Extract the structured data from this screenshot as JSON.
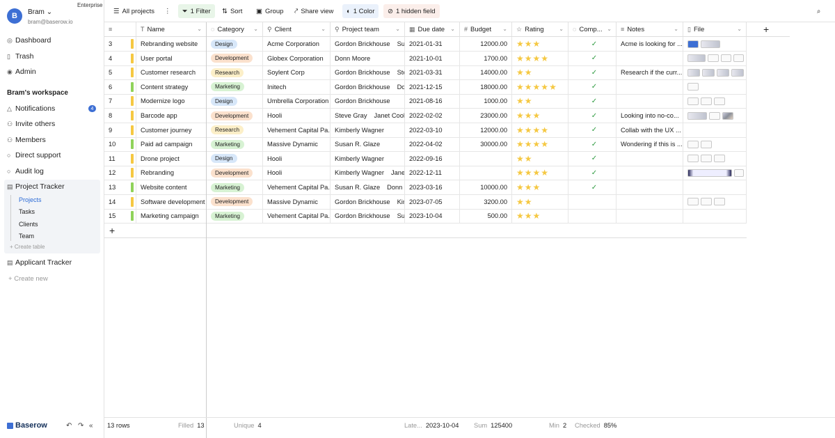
{
  "user": {
    "initial": "B",
    "name": "Bram",
    "email": "bram@baserow.io",
    "plan": "Enterprise"
  },
  "sidebar": {
    "items": [
      {
        "label": "Dashboard",
        "icon": "dashboard-icon"
      },
      {
        "label": "Trash",
        "icon": "trash-icon"
      },
      {
        "label": "Admin",
        "icon": "admin-icon"
      }
    ],
    "workspace_title": "Bram's workspace",
    "workspace_items": [
      {
        "label": "Notifications",
        "icon": "bell-icon"
      },
      {
        "label": "Invite others",
        "icon": "invite-icon"
      },
      {
        "label": "Members",
        "icon": "members-icon"
      },
      {
        "label": "Direct support",
        "icon": "support-icon"
      },
      {
        "label": "Audit log",
        "icon": "audit-icon"
      }
    ],
    "notifications_count": "4",
    "database": "Project Tracker",
    "tables": [
      "Projects",
      "Tasks",
      "Clients",
      "Team"
    ],
    "create_table": "+ Create table",
    "database2": "Applicant Tracker",
    "create_new": "Create new",
    "logo": "Baserow"
  },
  "toolbar": {
    "view": "All projects",
    "filter": "1 Filter",
    "sort": "Sort",
    "group": "Group",
    "share": "Share view",
    "color": "1 Color",
    "hidden": "1 hidden field"
  },
  "columns": [
    "Name",
    "Category",
    "Client",
    "Project team",
    "Due date",
    "Budget",
    "Rating",
    "Comp...",
    "Notes",
    "File"
  ],
  "rows": [
    {
      "n": "3",
      "name": "Rebranding website",
      "cat": "Design",
      "client": "Acme Corporation",
      "team": [
        "Gordon Brickhouse",
        "Sus"
      ],
      "due": "2021-01-31",
      "budget": "12000.00",
      "rating": 3,
      "done": true,
      "notes": "Acme is looking for ...",
      "files": "img",
      "bar": "yellow"
    },
    {
      "n": "4",
      "name": "User portal",
      "cat": "Development",
      "client": "Globex Corporation",
      "team": [
        "Donn Moore"
      ],
      "due": "2021-10-01",
      "budget": "1700.00",
      "rating": 4,
      "done": true,
      "notes": "",
      "files": "mixed",
      "bar": "yellow"
    },
    {
      "n": "5",
      "name": "Customer research",
      "cat": "Research",
      "client": "Soylent Corp",
      "team": [
        "Gordon Brickhouse",
        "Stev"
      ],
      "due": "2021-03-31",
      "budget": "14000.00",
      "rating": 2,
      "done": true,
      "notes": "Research if the curr...",
      "files": "wide",
      "bar": "yellow"
    },
    {
      "n": "6",
      "name": "Content strategy",
      "cat": "Marketing",
      "client": "Initech",
      "team": [
        "Gordon Brickhouse",
        "Don"
      ],
      "due": "2021-12-15",
      "budget": "18000.00",
      "rating": 5,
      "done": true,
      "notes": "",
      "files": "doc1",
      "bar": "green"
    },
    {
      "n": "7",
      "name": "Modernize logo",
      "cat": "Design",
      "client": "Umbrella Corporation",
      "team": [
        "Gordon Brickhouse"
      ],
      "due": "2021-08-16",
      "budget": "1000.00",
      "rating": 2,
      "done": true,
      "notes": "",
      "files": "doc3",
      "bar": "yellow"
    },
    {
      "n": "8",
      "name": "Barcode app",
      "cat": "Development",
      "client": "Hooli",
      "team": [
        "Steve Gray",
        "Janet Cook"
      ],
      "due": "2022-02-02",
      "budget": "23000.00",
      "rating": 3,
      "done": true,
      "notes": "Looking into no-co...",
      "files": "mix2",
      "bar": "yellow"
    },
    {
      "n": "9",
      "name": "Customer journey",
      "cat": "Research",
      "client": "Vehement Capital Pa...",
      "team": [
        "Kimberly Wagner"
      ],
      "due": "2022-03-10",
      "budget": "12000.00",
      "rating": 4,
      "done": true,
      "notes": "Collab with the UX ...",
      "files": "",
      "bar": "yellow"
    },
    {
      "n": "10",
      "name": "Paid ad campaign",
      "cat": "Marketing",
      "client": "Massive Dynamic",
      "team": [
        "Susan R. Glaze"
      ],
      "due": "2022-04-02",
      "budget": "30000.00",
      "rating": 4,
      "done": true,
      "notes": "Wondering if this is ...",
      "files": "doc2",
      "bar": "green"
    },
    {
      "n": "11",
      "name": "Drone project",
      "cat": "Design",
      "client": "Hooli",
      "team": [
        "Kimberly Wagner"
      ],
      "due": "2022-09-16",
      "budget": "",
      "rating": 2,
      "done": true,
      "notes": "",
      "files": "doc3",
      "bar": "yellow"
    },
    {
      "n": "12",
      "name": "Rebranding",
      "cat": "Development",
      "client": "Hooli",
      "team": [
        "Kimberly Wagner",
        "Janet"
      ],
      "due": "2022-12-11",
      "budget": "",
      "rating": 4,
      "done": true,
      "notes": "",
      "files": "dark",
      "bar": "yellow"
    },
    {
      "n": "13",
      "name": "Website content",
      "cat": "Marketing",
      "client": "Vehement Capital Pa...",
      "team": [
        "Susan R. Glaze",
        "Donn M"
      ],
      "due": "2023-03-16",
      "budget": "10000.00",
      "rating": 3,
      "done": true,
      "notes": "",
      "files": "",
      "bar": "green"
    },
    {
      "n": "14",
      "name": "Software development",
      "cat": "Development",
      "client": "Massive Dynamic",
      "team": [
        "Gordon Brickhouse",
        "Kim"
      ],
      "due": "2023-07-05",
      "budget": "3200.00",
      "rating": 2,
      "done": false,
      "notes": "",
      "files": "doc3",
      "bar": "yellow"
    },
    {
      "n": "15",
      "name": "Marketing campaign",
      "cat": "Marketing",
      "client": "Vehement Capital Pa...",
      "team": [
        "Gordon Brickhouse",
        "Sus"
      ],
      "due": "2023-10-04",
      "budget": "500.00",
      "rating": 3,
      "done": false,
      "notes": "",
      "files": "",
      "bar": "green"
    }
  ],
  "footer": {
    "count": "13 rows",
    "filled_label": "Filled",
    "filled": "13",
    "unique_label": "Unique",
    "unique": "4",
    "latest_label": "Late...",
    "latest": "2023-10-04",
    "sum_label": "Sum",
    "sum": "125400",
    "min_label": "Min",
    "min": "2",
    "checked_label": "Checked",
    "checked": "85%"
  }
}
